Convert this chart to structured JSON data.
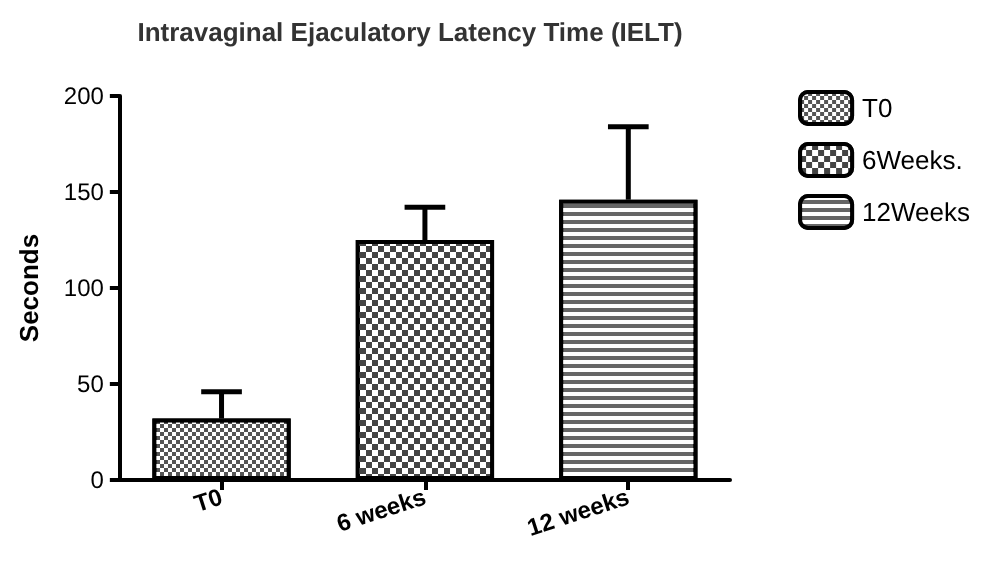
{
  "chart_data": {
    "type": "bar",
    "title": "Intravaginal Ejaculatory Latency Time (IELT)",
    "ylabel": "Seconds",
    "categories": [
      "T0",
      "6 weeks",
      "12 weeks"
    ],
    "series": [
      {
        "name": "T0",
        "color": "#555555",
        "values": [
          32,
          null,
          null
        ],
        "errors": [
          [
            32,
            46
          ],
          null,
          null
        ]
      },
      {
        "name": "6Weeks.",
        "color": "#444444",
        "values": [
          null,
          125,
          null
        ],
        "errors": [
          null,
          [
            125,
            142
          ],
          null
        ]
      },
      {
        "name": "12Weeks",
        "color": "#666666",
        "values": [
          null,
          null,
          146
        ],
        "errors": [
          null,
          null,
          [
            146,
            184
          ]
        ]
      }
    ],
    "ylim": [
      0,
      200
    ],
    "yticks": [
      0,
      50,
      100,
      150,
      200
    ],
    "grid": false,
    "legend": "right"
  }
}
